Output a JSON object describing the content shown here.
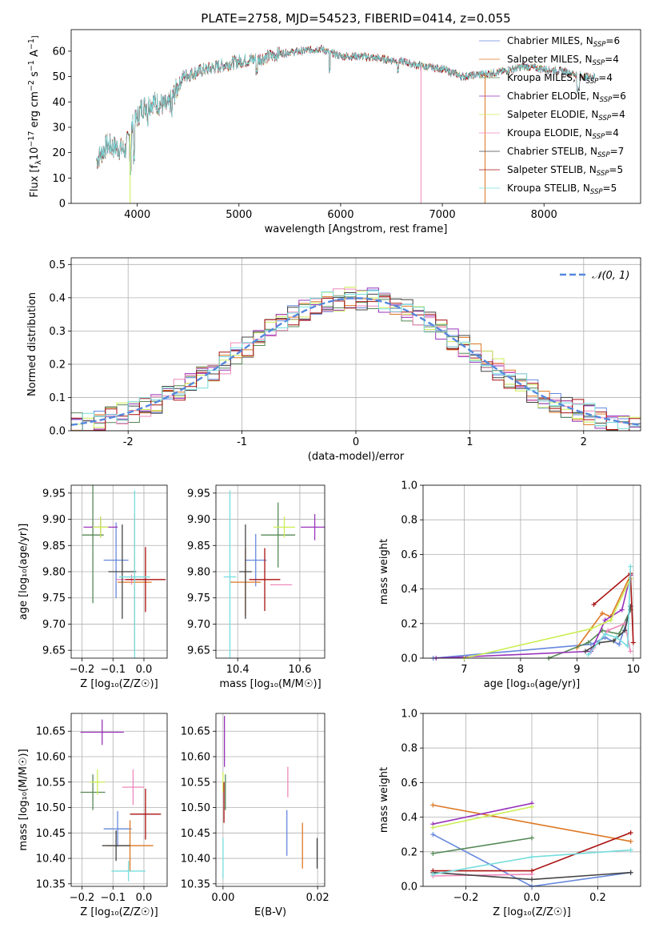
{
  "colors": [
    "#6688dd",
    "#dd7722",
    "#558855",
    "#9933bb",
    "#ccee55",
    "#ee88bb",
    "#444444",
    "#aa1111",
    "#77dddd"
  ],
  "chart_data": [
    {
      "id": "spectrum",
      "type": "line",
      "title": "PLATE=2758, MJD=54523, FIBERID=0414, z=0.055",
      "xlabel": "wavelength [Angstrom, rest frame]",
      "ylabel_parts": {
        "main": "Flux [f",
        "sub": "λ",
        "mid": "10",
        "e1": "−17",
        "mid2": " erg cm",
        "e2": "−2",
        "mid3": " s",
        "e3": "−1",
        "mid4": " A",
        "e4": "−1",
        "end": "]"
      },
      "xlim": [
        3350,
        8950
      ],
      "ylim": [
        0,
        68.5
      ],
      "xticks": [
        4000,
        5000,
        6000,
        7000,
        8000
      ],
      "yticks": [
        0,
        10,
        20,
        30,
        40,
        50,
        60
      ],
      "legend_location": "upper right",
      "legend": [
        {
          "name": "Chabrier MILES",
          "n": "6"
        },
        {
          "name": "Salpeter MILES",
          "n": "4"
        },
        {
          "name": "Kroupa MILES",
          "n": "4"
        },
        {
          "name": "Chabrier ELODIE",
          "n": "6"
        },
        {
          "name": "Salpeter ELODIE",
          "n": "4"
        },
        {
          "name": "Kroupa ELODIE",
          "n": "4"
        },
        {
          "name": "Chabrier STELIB",
          "n": "7"
        },
        {
          "name": "Salpeter STELIB",
          "n": "5"
        },
        {
          "name": "Kroupa STELIB",
          "n": "5"
        }
      ],
      "continuum_knots": [
        [
          3600,
          17
        ],
        [
          3700,
          23
        ],
        [
          3800,
          22
        ],
        [
          3880,
          21
        ],
        [
          3950,
          30
        ],
        [
          4050,
          38
        ],
        [
          4150,
          40
        ],
        [
          4300,
          38
        ],
        [
          4450,
          50
        ],
        [
          4600,
          52
        ],
        [
          4800,
          54
        ],
        [
          5000,
          56
        ],
        [
          5200,
          57
        ],
        [
          5400,
          59
        ],
        [
          5600,
          60
        ],
        [
          5800,
          61
        ],
        [
          6000,
          58
        ],
        [
          6200,
          58
        ],
        [
          6400,
          57
        ],
        [
          6600,
          56
        ],
        [
          6800,
          54
        ],
        [
          7000,
          53
        ],
        [
          7200,
          50
        ],
        [
          7400,
          51
        ],
        [
          7600,
          52
        ],
        [
          7800,
          54
        ],
        [
          8000,
          53
        ],
        [
          8200,
          52
        ],
        [
          8400,
          50
        ],
        [
          8500,
          50
        ]
      ],
      "wavelength_range": [
        3600,
        8500
      ],
      "drop_segments": [
        {
          "series": 4,
          "x": 3930
        },
        {
          "series": 5,
          "x": 6790
        },
        {
          "series": 1,
          "x": 7420
        }
      ]
    },
    {
      "id": "residuals",
      "type": "histogram",
      "xlabel": "(data-model)/error",
      "ylabel": "Normed distribution",
      "xlim": [
        -2.5,
        2.5
      ],
      "ylim": [
        0,
        0.52
      ],
      "xticks": [
        -2,
        -1,
        0,
        1,
        2
      ],
      "yticks": [
        0.0,
        0.1,
        0.2,
        0.3,
        0.4,
        0.5
      ],
      "legend": "𝒩(0, 1)",
      "bin_width": 0.1,
      "reference_curve": "normal(0,1)"
    },
    {
      "id": "age-vs-Z",
      "type": "errorbar",
      "xlabel": "Z [log₁₀(Z/Z☉)]",
      "ylabel": "age  [log₁₀(age/yr)]",
      "xlim": [
        -0.235,
        0.075
      ],
      "ylim": [
        9.635,
        9.965
      ],
      "xticks": [
        -0.2,
        -0.1,
        0.0
      ],
      "xticklabels": [
        "−0.2",
        "−0.1",
        "0.0"
      ],
      "yticks": [
        9.65,
        9.7,
        9.75,
        9.8,
        9.85,
        9.9,
        9.95
      ],
      "yticklabels": [
        "9.65",
        "9.70",
        "9.75",
        "9.80",
        "9.85",
        "9.90",
        "9.95"
      ],
      "points": [
        {
          "x": -0.09,
          "xerr": 0.04,
          "y": 9.822,
          "yerr": 0.072
        },
        {
          "x": -0.03,
          "xerr": 0.055,
          "y": 9.78,
          "yerr": 0.13
        },
        {
          "x": -0.165,
          "xerr": 0.035,
          "y": 9.87,
          "yerr": 0.13
        },
        {
          "x": -0.14,
          "xerr": 0.055,
          "y": 9.885,
          "yerr": 0.02
        },
        {
          "x": -0.14,
          "xerr": 0.025,
          "y": 9.885,
          "yerr": 0.02
        },
        {
          "x": -0.04,
          "xerr": 0.05,
          "y": 9.785,
          "yerr": 0.01
        },
        {
          "x": -0.07,
          "xerr": 0.045,
          "y": 9.8,
          "yerr": 0.09
        },
        {
          "x": 0.005,
          "xerr": 0.065,
          "y": 9.785,
          "yerr": 0.062
        },
        {
          "x": -0.03,
          "xerr": 0.05,
          "y": 9.79,
          "yerr": 0.165
        }
      ]
    },
    {
      "id": "age-vs-mass",
      "type": "errorbar",
      "xlabel": "mass [log₁₀(M/M☉)]",
      "xlim": [
        10.33,
        10.68
      ],
      "ylim": [
        9.635,
        9.965
      ],
      "xticks": [
        10.4,
        10.6
      ],
      "xticklabels": [
        "10.4",
        "10.6"
      ],
      "yticks": [
        9.65,
        9.7,
        9.75,
        9.8,
        9.85,
        9.9,
        9.95
      ],
      "yticklabels": [
        "9.65",
        "9.70",
        "9.75",
        "9.80",
        "9.85",
        "9.90",
        "9.95"
      ],
      "points": [
        {
          "x": 10.458,
          "xerr": 0.035,
          "y": 9.822,
          "yerr": 0.05
        },
        {
          "x": 10.425,
          "xerr": 0.05,
          "y": 9.78,
          "yerr": 0.065
        },
        {
          "x": 10.53,
          "xerr": 0.055,
          "y": 9.87,
          "yerr": 0.062
        },
        {
          "x": 10.648,
          "xerr": 0.045,
          "y": 9.885,
          "yerr": 0.025
        },
        {
          "x": 10.55,
          "xerr": 0.035,
          "y": 9.885,
          "yerr": 0.02
        },
        {
          "x": 10.54,
          "xerr": 0.035,
          "y": 9.775,
          "yerr": 0.0
        },
        {
          "x": 10.425,
          "xerr": 0.02,
          "y": 9.8,
          "yerr": 0.09
        },
        {
          "x": 10.487,
          "xerr": 0.05,
          "y": 9.785,
          "yerr": 0.06
        },
        {
          "x": 10.375,
          "xerr": 0.02,
          "y": 9.79,
          "yerr": 0.165
        }
      ]
    },
    {
      "id": "weight-vs-age",
      "type": "line",
      "xlabel": "age  [log₁₀(age/yr)]",
      "ylabel": "mass weight",
      "xlim": [
        6.27,
        10.13
      ],
      "ylim": [
        0,
        1
      ],
      "xticks": [
        7,
        8,
        9,
        10
      ],
      "yticks": [
        0.0,
        0.2,
        0.4,
        0.6,
        0.8,
        1.0
      ],
      "series": [
        {
          "points": [
            [
              6.45,
              0.0
            ],
            [
              9.25,
              0.08
            ],
            [
              9.5,
              0.12
            ],
            [
              9.75,
              0.08
            ],
            [
              9.95,
              0.28
            ]
          ]
        },
        {
          "points": [
            [
              9.0,
              0.06
            ],
            [
              9.45,
              0.26
            ],
            [
              9.6,
              0.24
            ],
            [
              9.95,
              0.48
            ]
          ]
        },
        {
          "points": [
            [
              8.5,
              0.0
            ],
            [
              9.2,
              0.09
            ],
            [
              9.45,
              0.16
            ],
            [
              9.75,
              0.14
            ],
            [
              9.95,
              0.28
            ]
          ]
        },
        {
          "points": [
            [
              6.5,
              0.0
            ],
            [
              9.25,
              0.04
            ],
            [
              9.5,
              0.22
            ],
            [
              9.8,
              0.28
            ],
            [
              9.95,
              0.48
            ]
          ]
        },
        {
          "points": [
            [
              7.0,
              0.0
            ],
            [
              9.25,
              0.17
            ],
            [
              9.6,
              0.22
            ],
            [
              9.95,
              0.46
            ]
          ]
        },
        {
          "points": [
            [
              9.3,
              0.06
            ],
            [
              9.55,
              0.16
            ],
            [
              9.85,
              0.2
            ],
            [
              9.95,
              0.04
            ]
          ]
        },
        {
          "points": [
            [
              9.15,
              0.04
            ],
            [
              9.4,
              0.09
            ],
            [
              9.65,
              0.1
            ],
            [
              9.85,
              0.16
            ],
            [
              9.95,
              0.3
            ]
          ]
        },
        {
          "points": [
            [
              9.3,
              0.31
            ],
            [
              9.95,
              0.49
            ],
            [
              10.0,
              0.09
            ]
          ]
        },
        {
          "points": [
            [
              9.2,
              0.02
            ],
            [
              9.5,
              0.14
            ],
            [
              9.7,
              0.12
            ],
            [
              9.9,
              0.07
            ],
            [
              9.95,
              0.53
            ]
          ]
        }
      ]
    },
    {
      "id": "mass-vs-Z",
      "type": "errorbar",
      "xlabel": "Z [log₁₀(Z/Z☉)]",
      "ylabel": "mass [log₁₀(M/M☉)]",
      "xlim": [
        -0.235,
        0.075
      ],
      "ylim": [
        10.345,
        10.685
      ],
      "xticks": [
        -0.2,
        -0.1,
        0.0
      ],
      "xticklabels": [
        "−0.2",
        "−0.1",
        "0.0"
      ],
      "yticks": [
        10.35,
        10.4,
        10.45,
        10.5,
        10.55,
        10.6,
        10.65
      ],
      "yticklabels": [
        "10.35",
        "10.40",
        "10.45",
        "10.50",
        "10.55",
        "10.60",
        "10.65"
      ],
      "points": [
        {
          "x": -0.085,
          "xerr": 0.045,
          "y": 10.458,
          "yerr": 0.035
        },
        {
          "x": -0.045,
          "xerr": 0.075,
          "y": 10.425,
          "yerr": 0.05
        },
        {
          "x": -0.165,
          "xerr": 0.04,
          "y": 10.53,
          "yerr": 0.035
        },
        {
          "x": -0.135,
          "xerr": 0.07,
          "y": 10.648,
          "yerr": 0.025
        },
        {
          "x": -0.15,
          "xerr": 0.025,
          "y": 10.55,
          "yerr": 0.025
        },
        {
          "x": -0.035,
          "xerr": 0.035,
          "y": 10.54,
          "yerr": 0.035
        },
        {
          "x": -0.09,
          "xerr": 0.045,
          "y": 10.425,
          "yerr": 0.03
        },
        {
          "x": 0.005,
          "xerr": 0.05,
          "y": 10.487,
          "yerr": 0.05
        },
        {
          "x": -0.05,
          "xerr": 0.055,
          "y": 10.375,
          "yerr": 0.02
        }
      ]
    },
    {
      "id": "mass-vs-EBV",
      "type": "errorbar",
      "xlabel": "E(B-V)",
      "xlim": [
        -0.0015,
        0.0215
      ],
      "ylim": [
        10.345,
        10.685
      ],
      "xticks": [
        0.0,
        0.02
      ],
      "xticklabels": [
        "0.00",
        "0.02"
      ],
      "yticks": [
        10.35,
        10.4,
        10.45,
        10.5,
        10.55,
        10.6,
        10.65
      ],
      "yticklabels": [
        "10.35",
        "10.40",
        "10.45",
        "10.50",
        "10.55",
        "10.60",
        "10.65"
      ],
      "points": [
        {
          "x": 0.0135,
          "xerr": 0,
          "y": 10.45,
          "yerr": 0.045
        },
        {
          "x": 0.0168,
          "xerr": 0,
          "y": 10.425,
          "yerr": 0.045
        },
        {
          "x": 0.0005,
          "xerr": 0,
          "y": 10.53,
          "yerr": 0.035
        },
        {
          "x": 0.0003,
          "xerr": 0,
          "y": 10.63,
          "yerr": 0.05
        },
        {
          "x": 0.0,
          "xerr": 0,
          "y": 10.55,
          "yerr": 0.02
        },
        {
          "x": 0.0137,
          "xerr": 0,
          "y": 10.55,
          "yerr": 0.03
        },
        {
          "x": 0.0199,
          "xerr": 0,
          "y": 10.41,
          "yerr": 0.03
        },
        {
          "x": 0.0002,
          "xerr": 0,
          "y": 10.51,
          "yerr": 0.04
        },
        {
          "x": 0.0,
          "xerr": 0,
          "y": 10.4,
          "yerr": 0.04
        }
      ]
    },
    {
      "id": "weight-vs-Z",
      "type": "line",
      "xlabel": "Z [log₁₀(Z/Z☉)]",
      "ylabel": "mass weight",
      "xlim": [
        -0.33,
        0.33
      ],
      "ylim": [
        0,
        1
      ],
      "xticks": [
        -0.2,
        0.0,
        0.2
      ],
      "xticklabels": [
        "−0.2",
        "0.0",
        "0.2"
      ],
      "yticks": [
        0.0,
        0.2,
        0.4,
        0.6,
        0.8,
        1.0
      ],
      "series": [
        {
          "points": [
            [
              -0.3,
              0.3
            ],
            [
              0.0,
              0.0
            ],
            [
              0.3,
              0.08
            ]
          ]
        },
        {
          "points": [
            [
              -0.3,
              0.47
            ],
            [
              0.3,
              0.26
            ]
          ]
        },
        {
          "points": [
            [
              -0.3,
              0.19
            ],
            [
              0.0,
              0.28
            ]
          ]
        },
        {
          "points": [
            [
              -0.3,
              0.36
            ],
            [
              0.0,
              0.48
            ]
          ]
        },
        {
          "points": [
            [
              -0.3,
              0.34
            ],
            [
              0.0,
              0.46
            ]
          ]
        },
        {
          "points": [
            [
              -0.3,
              0.06
            ],
            [
              0.0,
              0.07
            ]
          ]
        },
        {
          "points": [
            [
              -0.3,
              0.08
            ],
            [
              0.0,
              0.04
            ],
            [
              0.3,
              0.08
            ]
          ]
        },
        {
          "points": [
            [
              -0.3,
              0.09
            ],
            [
              0.0,
              0.09
            ],
            [
              0.3,
              0.31
            ]
          ]
        },
        {
          "points": [
            [
              -0.3,
              0.07
            ],
            [
              0.0,
              0.17
            ],
            [
              0.3,
              0.21
            ]
          ]
        }
      ]
    }
  ]
}
